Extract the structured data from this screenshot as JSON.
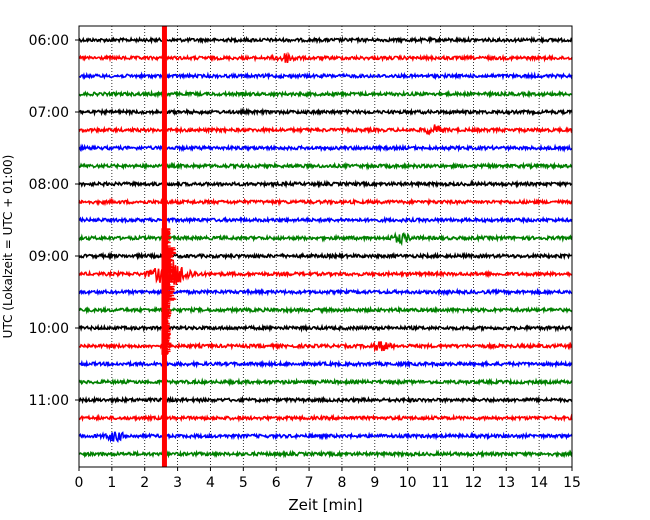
{
  "chart_data": {
    "type": "line",
    "title": "",
    "xlabel": "Zeit  [min]",
    "ylabel": "UTC (Lokalzeit = UTC + 01:00)",
    "xlim": [
      0,
      15
    ],
    "x_ticks": [
      "0",
      "1",
      "2",
      "3",
      "4",
      "5",
      "6",
      "7",
      "8",
      "9",
      "10",
      "11",
      "12",
      "13",
      "14",
      "15"
    ],
    "y_ticks": [
      {
        "label": "06:00",
        "trace": 0
      },
      {
        "label": "07:00",
        "trace": 4
      },
      {
        "label": "08:00",
        "trace": 8
      },
      {
        "label": "09:00",
        "trace": 12
      },
      {
        "label": "10:00",
        "trace": 16
      },
      {
        "label": "11:00",
        "trace": 20
      }
    ],
    "trace_interval_min": 15,
    "trace_count": 24,
    "first_trace": "06:00",
    "trace_colors": [
      "#000000",
      "#ff0000",
      "#0000ff",
      "#008000"
    ],
    "grid": "vertical-dotted",
    "events": [
      {
        "x_min": 2.6,
        "start_trace": 0,
        "end_trace": 23,
        "kind": "saturated-vertical-band",
        "color": "#ff0000"
      },
      {
        "x_min": 2.8,
        "trace": 13,
        "kind": "large-burst"
      },
      {
        "x_min": 6.3,
        "trace": 1,
        "kind": "small-burst"
      },
      {
        "x_min": 9.2,
        "trace": 17,
        "kind": "small-burst"
      },
      {
        "x_min": 9.8,
        "trace": 11,
        "kind": "small-burst"
      },
      {
        "x_min": 10.8,
        "trace": 5,
        "kind": "small-burst"
      },
      {
        "x_min": 1.1,
        "trace": 22,
        "kind": "small-burst"
      }
    ]
  }
}
